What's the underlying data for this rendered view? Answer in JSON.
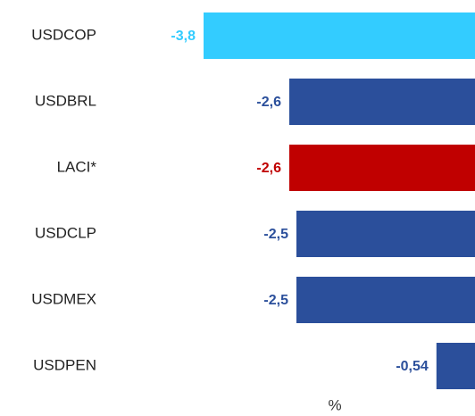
{
  "chart_data": {
    "type": "barh",
    "categories": [
      "USDCOP",
      "USDBRL",
      "LACI*",
      "USDCLP",
      "USDMEX",
      "USDPEN"
    ],
    "values": [
      -3.8,
      -2.6,
      -2.6,
      -2.5,
      -2.5,
      -0.54
    ],
    "value_labels": [
      "-3,8",
      "-2,6",
      "-2,6",
      "-2,5",
      "-2,5",
      "-0,54"
    ],
    "colors": [
      "#33ccff",
      "#2b4f9b",
      "#c00000",
      "#2b4f9b",
      "#2b4f9b",
      "#2b4f9b"
    ],
    "xlim": [
      -3.8,
      0
    ],
    "xlabel": "%"
  }
}
